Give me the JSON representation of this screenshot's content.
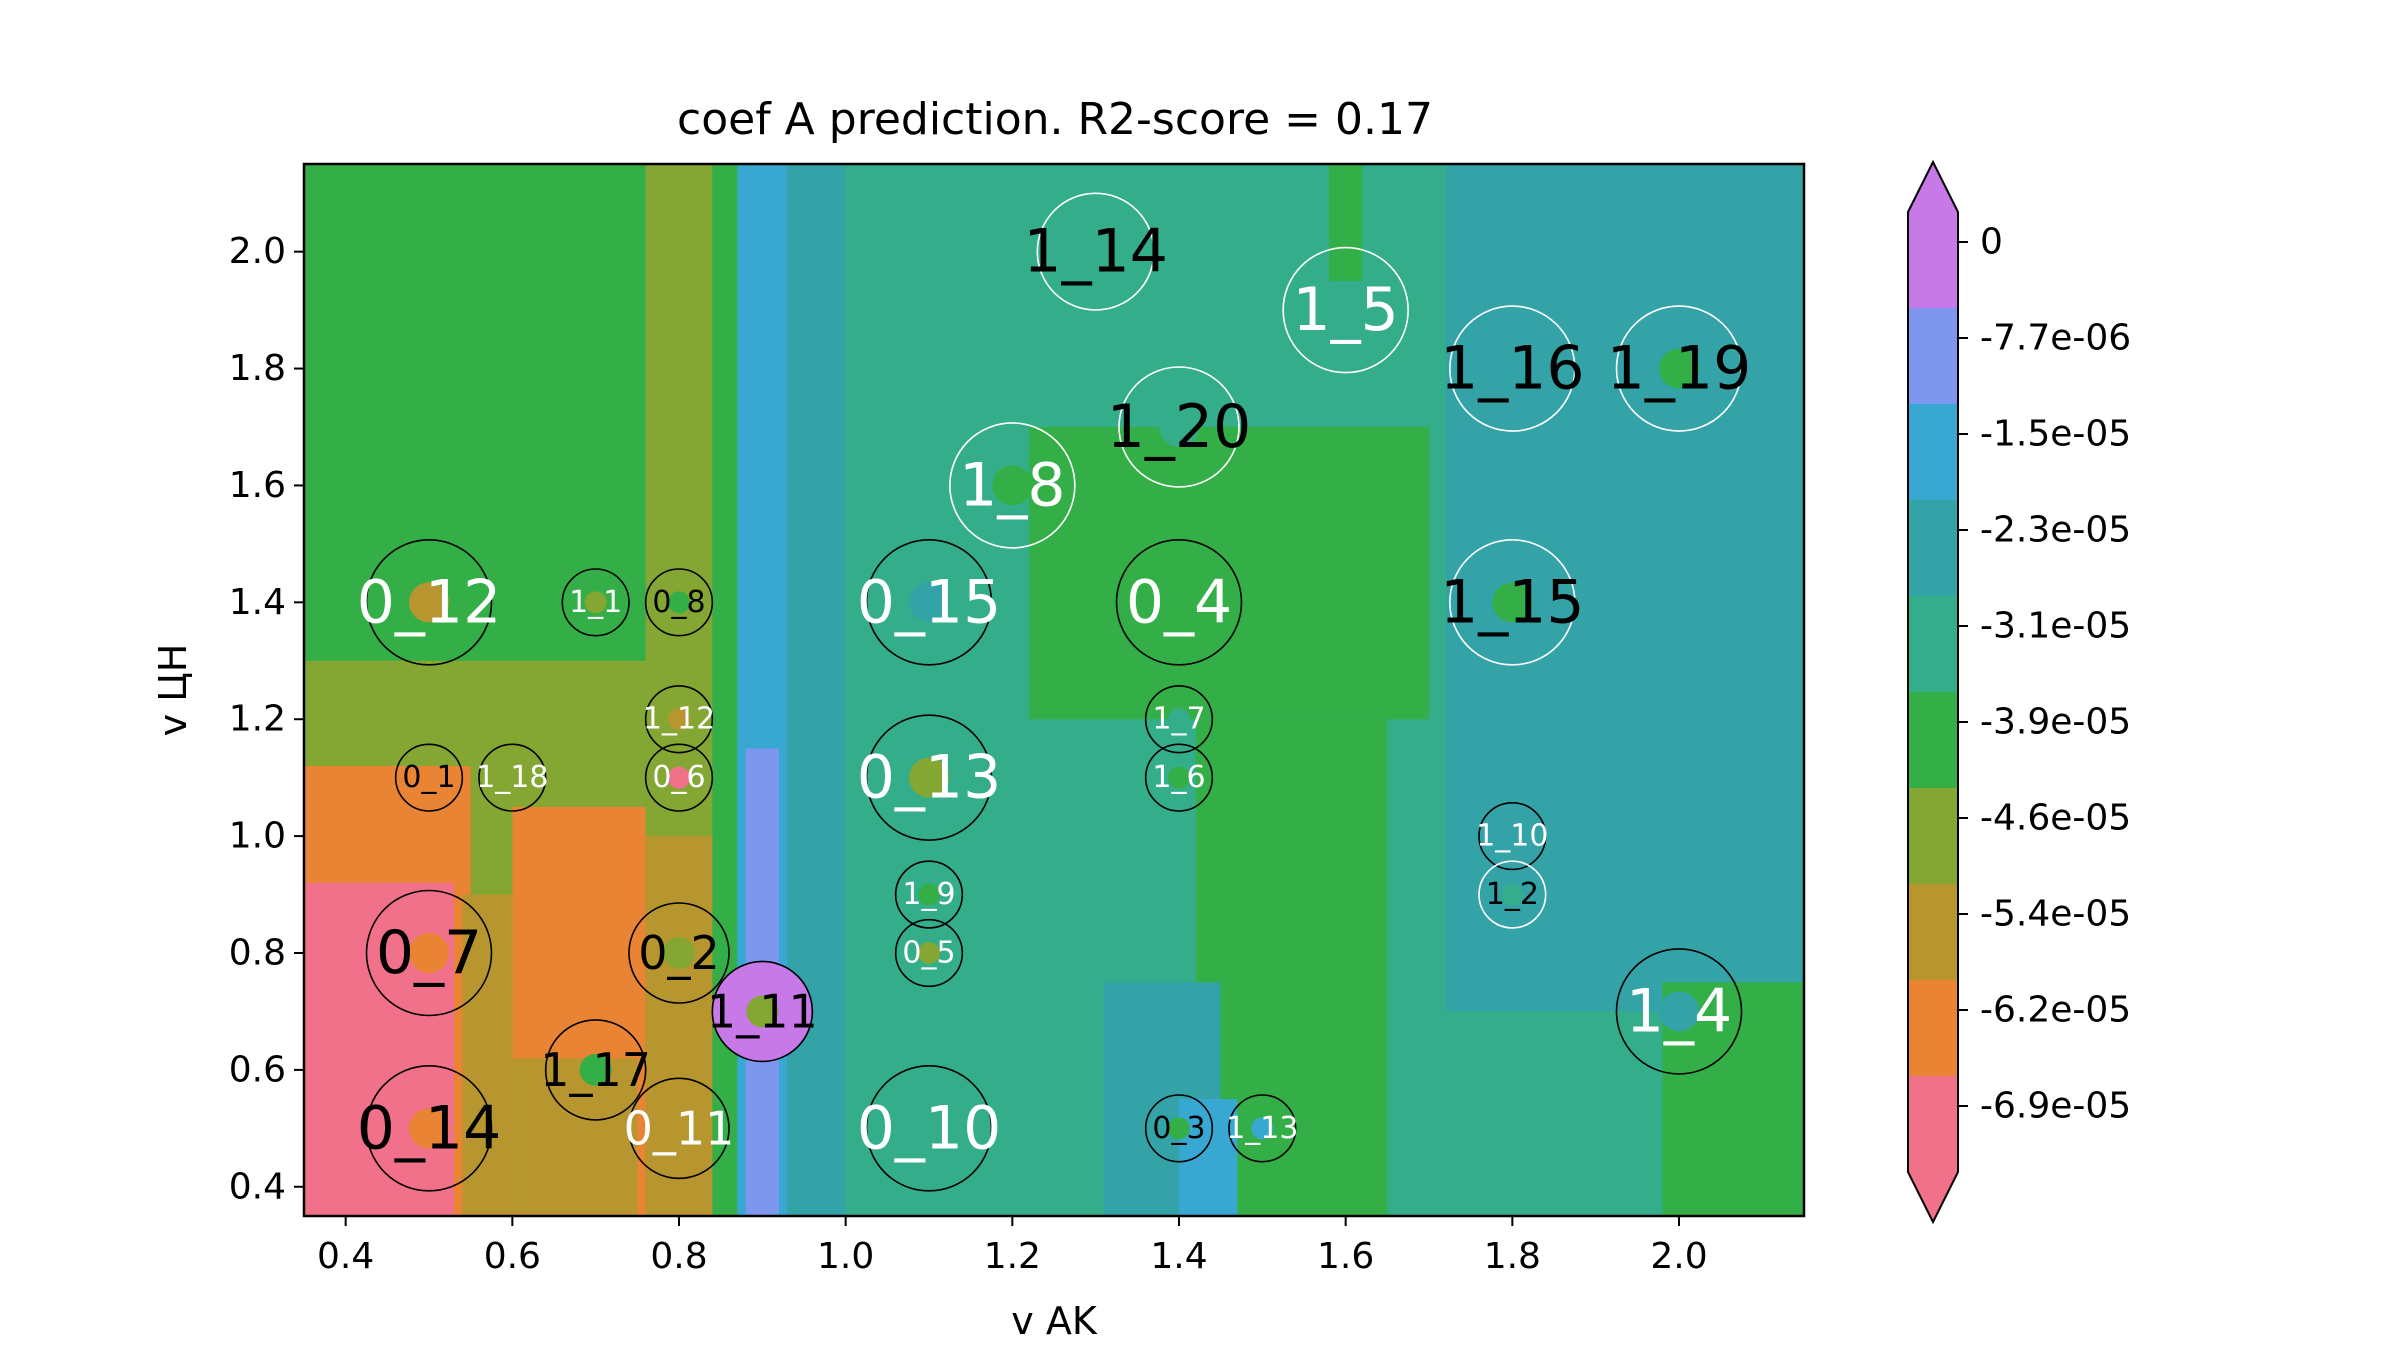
{
  "chart_data": {
    "type": "contour",
    "title": "coef A prediction. R2-score = 0.17",
    "xlabel": "v AK",
    "ylabel": "v ЦН",
    "xlim": [
      0.35,
      2.15
    ],
    "ylim": [
      0.35,
      2.15
    ],
    "xticks": [
      0.4,
      0.6,
      0.8,
      1.0,
      1.2,
      1.4,
      1.6,
      1.8,
      2.0
    ],
    "yticks": [
      0.4,
      0.6,
      0.8,
      1.0,
      1.2,
      1.4,
      1.6,
      1.8,
      2.0
    ],
    "xtick_labels": [
      "0.4",
      "0.6",
      "0.8",
      "1.0",
      "1.2",
      "1.4",
      "1.6",
      "1.8",
      "2.0"
    ],
    "ytick_labels": [
      "0.4",
      "0.6",
      "0.8",
      "1.0",
      "1.2",
      "1.4",
      "1.6",
      "1.8",
      "2.0"
    ],
    "colorbar": {
      "labels": [
        "0",
        "-7.7e-06",
        "-1.5e-05",
        "-2.3e-05",
        "-3.1e-05",
        "-3.9e-05",
        "-4.6e-05",
        "-5.4e-05",
        "-6.2e-05",
        "-6.9e-05"
      ],
      "level_values": [
        0,
        -7.7e-06,
        -1.5e-05,
        -2.3e-05,
        -3.1e-05,
        -3.9e-05,
        -4.6e-05,
        -5.4e-05,
        -6.2e-05,
        -6.9e-05
      ],
      "colors": [
        "#c879e8",
        "#7d96ee",
        "#38a8d2",
        "#33a3a8",
        "#34ad8a",
        "#34ae47",
        "#84a632",
        "#b8962f",
        "#e88433",
        "#f2718a"
      ],
      "extend": "both"
    },
    "contour_regions": [
      {
        "x": [
          0.35,
          2.15
        ],
        "y": [
          0.35,
          2.15
        ],
        "level": 4
      },
      {
        "x": [
          0.35,
          0.76
        ],
        "y": [
          0.35,
          2.15
        ],
        "level": 5
      },
      {
        "x": [
          0.76,
          0.84
        ],
        "y": [
          0.35,
          2.15
        ],
        "level": 6
      },
      {
        "x": [
          0.84,
          0.87
        ],
        "y": [
          0.35,
          2.15
        ],
        "level": 5
      },
      {
        "x": [
          0.87,
          0.93
        ],
        "y": [
          0.35,
          2.15
        ],
        "level": 2
      },
      {
        "x": [
          0.88,
          0.92
        ],
        "y": [
          0.35,
          1.15
        ],
        "level": 1
      },
      {
        "x": [
          0.93,
          1.0
        ],
        "y": [
          0.35,
          2.15
        ],
        "level": 3
      },
      {
        "x": [
          1.0,
          1.22
        ],
        "y": [
          0.35,
          1.55
        ],
        "level": 4
      },
      {
        "x": [
          1.22,
          1.7
        ],
        "y": [
          1.2,
          1.7
        ],
        "level": 5
      },
      {
        "x": [
          1.42,
          1.65
        ],
        "y": [
          0.35,
          1.2
        ],
        "level": 5
      },
      {
        "x": [
          1.58,
          1.62
        ],
        "y": [
          1.95,
          2.15
        ],
        "level": 5
      },
      {
        "x": [
          1.72,
          2.15
        ],
        "y": [
          0.7,
          2.15
        ],
        "level": 3
      },
      {
        "x": [
          1.98,
          2.15
        ],
        "y": [
          0.35,
          0.75
        ],
        "level": 5
      },
      {
        "x": [
          1.31,
          1.45
        ],
        "y": [
          0.35,
          0.75
        ],
        "level": 3
      },
      {
        "x": [
          1.4,
          1.47
        ],
        "y": [
          0.35,
          0.55
        ],
        "level": 2
      },
      {
        "x": [
          0.35,
          0.76
        ],
        "y": [
          0.35,
          1.3
        ],
        "level": 6
      },
      {
        "x": [
          0.35,
          0.55
        ],
        "y": [
          0.35,
          1.12
        ],
        "level": 8
      },
      {
        "x": [
          0.6,
          0.76
        ],
        "y": [
          0.35,
          1.05
        ],
        "level": 8
      },
      {
        "x": [
          0.54,
          0.6
        ],
        "y": [
          0.35,
          0.9
        ],
        "level": 7
      },
      {
        "x": [
          0.6,
          0.75
        ],
        "y": [
          0.35,
          0.62
        ],
        "level": 7
      },
      {
        "x": [
          0.76,
          0.84
        ],
        "y": [
          0.35,
          1.0
        ],
        "level": 7
      },
      {
        "x": [
          0.35,
          0.53
        ],
        "y": [
          0.35,
          0.92
        ],
        "level": 9
      }
    ],
    "points": [
      {
        "label": "1_14",
        "x": 1.3,
        "y": 2.0,
        "level": 4,
        "r": 0.07,
        "ring": "white",
        "text": "black",
        "size": "large"
      },
      {
        "label": "1_5",
        "x": 1.6,
        "y": 1.9,
        "level": 4,
        "r": 0.075,
        "ring": "white",
        "text": "white",
        "size": "large"
      },
      {
        "label": "1_16",
        "x": 1.8,
        "y": 1.8,
        "level": 3,
        "r": 0.075,
        "ring": "white",
        "text": "black",
        "size": "large"
      },
      {
        "label": "1_19",
        "x": 2.0,
        "y": 1.8,
        "level": 5,
        "r": 0.075,
        "ring": "white",
        "text": "black",
        "size": "large"
      },
      {
        "label": "1_20",
        "x": 1.4,
        "y": 1.7,
        "level": 4,
        "r": 0.072,
        "ring": "white",
        "text": "black",
        "size": "large"
      },
      {
        "label": "1_8",
        "x": 1.2,
        "y": 1.6,
        "level": 5,
        "r": 0.075,
        "ring": "white",
        "text": "white",
        "size": "large"
      },
      {
        "label": "0_12",
        "x": 0.5,
        "y": 1.4,
        "level": 7,
        "r": 0.075,
        "ring": "black",
        "text": "white",
        "size": "large"
      },
      {
        "label": "1_1",
        "x": 0.7,
        "y": 1.4,
        "level": 6,
        "r": 0.04,
        "ring": "black",
        "text": "white",
        "size": "small"
      },
      {
        "label": "0_8",
        "x": 0.8,
        "y": 1.4,
        "level": 5,
        "r": 0.04,
        "ring": "black",
        "text": "black",
        "size": "small"
      },
      {
        "label": "0_15",
        "x": 1.1,
        "y": 1.4,
        "level": 3,
        "r": 0.075,
        "ring": "black",
        "text": "white",
        "size": "large"
      },
      {
        "label": "0_4",
        "x": 1.4,
        "y": 1.4,
        "level": 5,
        "r": 0.075,
        "ring": "black",
        "text": "white",
        "size": "large"
      },
      {
        "label": "1_15",
        "x": 1.8,
        "y": 1.4,
        "level": 5,
        "r": 0.075,
        "ring": "white",
        "text": "black",
        "size": "large"
      },
      {
        "label": "1_12",
        "x": 0.8,
        "y": 1.2,
        "level": 7,
        "r": 0.04,
        "ring": "black",
        "text": "white",
        "size": "small"
      },
      {
        "label": "1_7",
        "x": 1.4,
        "y": 1.2,
        "level": 4,
        "r": 0.04,
        "ring": "black",
        "text": "white",
        "size": "small"
      },
      {
        "label": "0_1",
        "x": 0.5,
        "y": 1.1,
        "level": 8,
        "r": 0.04,
        "ring": "black",
        "text": "black",
        "size": "small"
      },
      {
        "label": "1_18",
        "x": 0.6,
        "y": 1.1,
        "level": 6,
        "r": 0.04,
        "ring": "black",
        "text": "white",
        "size": "small"
      },
      {
        "label": "0_6",
        "x": 0.8,
        "y": 1.1,
        "level": 9,
        "r": 0.04,
        "ring": "black",
        "text": "white",
        "size": "small"
      },
      {
        "label": "0_13",
        "x": 1.1,
        "y": 1.1,
        "level": 6,
        "r": 0.075,
        "ring": "black",
        "text": "white",
        "size": "large"
      },
      {
        "label": "1_6",
        "x": 1.4,
        "y": 1.1,
        "level": 5,
        "r": 0.04,
        "ring": "black",
        "text": "white",
        "size": "small"
      },
      {
        "label": "1_10",
        "x": 1.8,
        "y": 1.0,
        "level": 3,
        "r": 0.04,
        "ring": "black",
        "text": "white",
        "size": "small"
      },
      {
        "label": "1_9",
        "x": 1.1,
        "y": 0.9,
        "level": 5,
        "r": 0.04,
        "ring": "black",
        "text": "white",
        "size": "small"
      },
      {
        "label": "1_2",
        "x": 1.8,
        "y": 0.9,
        "level": 4,
        "r": 0.04,
        "ring": "white",
        "text": "black",
        "size": "small"
      },
      {
        "label": "0_7",
        "x": 0.5,
        "y": 0.8,
        "level": 8,
        "r": 0.075,
        "ring": "black",
        "text": "black",
        "size": "large"
      },
      {
        "label": "0_2",
        "x": 0.8,
        "y": 0.8,
        "level": 6,
        "r": 0.06,
        "ring": "black",
        "text": "black",
        "size": "medium"
      },
      {
        "label": "0_5",
        "x": 1.1,
        "y": 0.8,
        "level": 6,
        "r": 0.04,
        "ring": "black",
        "text": "white",
        "size": "small"
      },
      {
        "label": "1_11",
        "x": 0.9,
        "y": 0.7,
        "level": 6,
        "r": 0.06,
        "ring": "black",
        "text": "black",
        "size": "medium"
      },
      {
        "label": "1_4",
        "x": 2.0,
        "y": 0.7,
        "level": 3,
        "r": 0.075,
        "ring": "black",
        "text": "white",
        "size": "large"
      },
      {
        "label": "1_17",
        "x": 0.7,
        "y": 0.6,
        "level": 5,
        "r": 0.06,
        "ring": "black",
        "text": "black",
        "size": "medium"
      },
      {
        "label": "0_14",
        "x": 0.5,
        "y": 0.5,
        "level": 8,
        "r": 0.075,
        "ring": "black",
        "text": "black",
        "size": "large"
      },
      {
        "label": "0_11",
        "x": 0.8,
        "y": 0.5,
        "level": 7,
        "r": 0.06,
        "ring": "black",
        "text": "white",
        "size": "medium"
      },
      {
        "label": "0_10",
        "x": 1.1,
        "y": 0.5,
        "level": 4,
        "r": 0.075,
        "ring": "black",
        "text": "white",
        "size": "large"
      },
      {
        "label": "0_3",
        "x": 1.4,
        "y": 0.5,
        "level": 5,
        "r": 0.04,
        "ring": "black",
        "text": "black",
        "size": "small"
      },
      {
        "label": "1_13",
        "x": 1.5,
        "y": 0.5,
        "level": 2,
        "r": 0.04,
        "ring": "black",
        "text": "white",
        "size": "small"
      }
    ],
    "highlight_circle_level": {
      "1_11": 0
    }
  }
}
